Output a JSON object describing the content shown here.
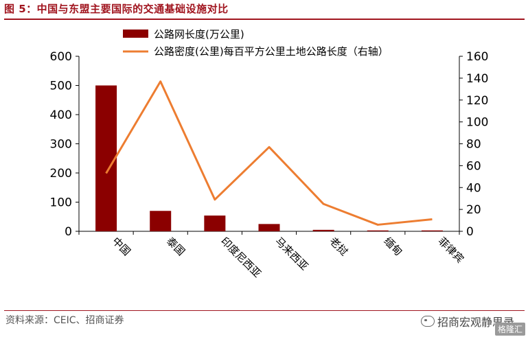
{
  "header": {
    "title": "图 5：中国与东盟主要国际的交通基础设施对比"
  },
  "footer": {
    "source": "资料来源：CEIC、招商证券",
    "watermark": "招商宏观静思录",
    "badge": "格隆汇"
  },
  "chart_data": {
    "type": "bar",
    "categories": [
      "中国",
      "泰国",
      "印度尼西亚",
      "马来西亚",
      "老挝",
      "缅甸",
      "菲律宾"
    ],
    "series": [
      {
        "name": "公路网长度(万公里)",
        "type": "bar",
        "axis": "left",
        "values": [
          500,
          70,
          54,
          25,
          5,
          3,
          3
        ],
        "color": "#8b0000"
      },
      {
        "name": "公路密度(公里)每百平方公里土地公路长度（右轴）",
        "type": "line",
        "axis": "right",
        "values": [
          53,
          137,
          29,
          77,
          25,
          6,
          11
        ],
        "color": "#ed7d31"
      }
    ],
    "left_axis": {
      "min": 0,
      "max": 600,
      "ticks": [
        0,
        100,
        200,
        300,
        400,
        500,
        600
      ]
    },
    "right_axis": {
      "min": 0,
      "max": 160,
      "ticks": [
        0,
        20,
        40,
        60,
        80,
        100,
        120,
        140,
        160
      ]
    },
    "legend_position": "top-right",
    "grid": false
  }
}
